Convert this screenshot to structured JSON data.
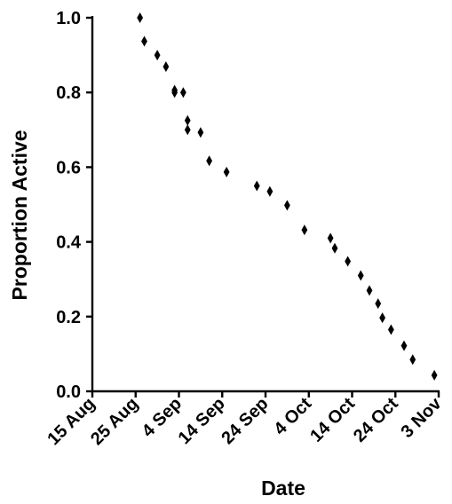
{
  "chart_data": {
    "type": "scatter",
    "title": "",
    "xlabel": "Date",
    "ylabel": "Proportion Active",
    "x_axis": {
      "type": "date",
      "range": [
        "2013-08-15",
        "2013-11-03"
      ],
      "tick_values": [
        "2013-08-15",
        "2013-08-25",
        "2013-09-04",
        "2013-09-14",
        "2013-09-24",
        "2013-10-04",
        "2013-10-14",
        "2013-10-24",
        "2013-11-03"
      ],
      "tick_labels": [
        "15 Aug",
        "25 Aug",
        "4 Sep",
        "14 Sep",
        "24 Sep",
        "4 Oct",
        "14 Oct",
        "24 Oct",
        "3 Nov"
      ]
    },
    "y_axis": {
      "range": [
        0,
        1
      ],
      "tick_values": [
        0,
        0.2,
        0.4,
        0.6,
        0.8,
        1.0
      ],
      "tick_labels": [
        "0.0",
        "0.2",
        "0.4",
        "0.6",
        "0.8",
        "1.0"
      ]
    },
    "grid": false,
    "legend": "none",
    "marker": "diamond",
    "marker_color": "#000000",
    "points": [
      {
        "x": "2013-08-26",
        "y": 1.0
      },
      {
        "x": "2013-08-27",
        "y": 0.937
      },
      {
        "x": "2013-08-30",
        "y": 0.9
      },
      {
        "x": "2013-09-01",
        "y": 0.869
      },
      {
        "x": "2013-09-03",
        "y": 0.806
      },
      {
        "x": "2013-09-03",
        "y": 0.8
      },
      {
        "x": "2013-09-05",
        "y": 0.8
      },
      {
        "x": "2013-09-06",
        "y": 0.725
      },
      {
        "x": "2013-09-06",
        "y": 0.7
      },
      {
        "x": "2013-09-09",
        "y": 0.693
      },
      {
        "x": "2013-09-11",
        "y": 0.617
      },
      {
        "x": "2013-09-15",
        "y": 0.587
      },
      {
        "x": "2013-09-22",
        "y": 0.55
      },
      {
        "x": "2013-09-25",
        "y": 0.535
      },
      {
        "x": "2013-09-29",
        "y": 0.498
      },
      {
        "x": "2013-10-03",
        "y": 0.432
      },
      {
        "x": "2013-10-09",
        "y": 0.41
      },
      {
        "x": "2013-10-10",
        "y": 0.383
      },
      {
        "x": "2013-10-13",
        "y": 0.348
      },
      {
        "x": "2013-10-16",
        "y": 0.31
      },
      {
        "x": "2013-10-18",
        "y": 0.27
      },
      {
        "x": "2013-10-20",
        "y": 0.235
      },
      {
        "x": "2013-10-21",
        "y": 0.197
      },
      {
        "x": "2013-10-23",
        "y": 0.165
      },
      {
        "x": "2013-10-26",
        "y": 0.122
      },
      {
        "x": "2013-10-28",
        "y": 0.085
      },
      {
        "x": "2013-11-02",
        "y": 0.043
      }
    ]
  }
}
